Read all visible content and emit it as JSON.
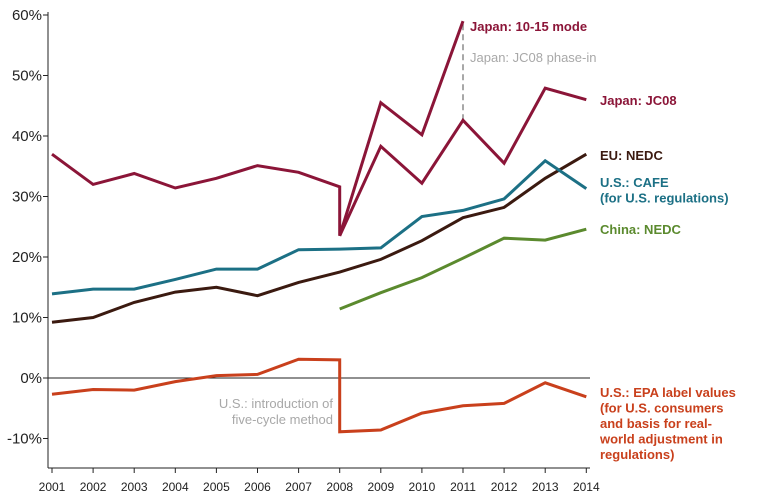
{
  "chart_data": {
    "type": "line",
    "title": "",
    "xlabel": "",
    "ylabel": "",
    "ylim": [
      -15,
      60
    ],
    "yticks": [
      -10,
      0,
      10,
      20,
      30,
      40,
      50,
      60
    ],
    "ytick_labels": [
      "-10%",
      "0%",
      "10%",
      "20%",
      "30%",
      "40%",
      "50%",
      "60%"
    ],
    "x_categories": [
      "2001",
      "2002",
      "2003",
      "2004",
      "2005",
      "2006",
      "2007",
      "2008",
      "2009",
      "2010",
      "2011",
      "2012",
      "2013",
      "2014"
    ],
    "grid": false,
    "series": [
      {
        "name": "Japan: 10-15 mode",
        "label_lines": [
          "Japan: 10-15 mode"
        ],
        "color": "#8b1538",
        "x": [
          2001,
          2002,
          2003,
          2004,
          2005,
          2006,
          2007,
          2008,
          2008,
          2009,
          2010,
          2011
        ],
        "y": [
          37,
          32,
          33.8,
          31.4,
          33,
          35.1,
          34,
          31.6,
          23.5,
          45.5,
          40.2,
          59
        ]
      },
      {
        "name": "Japan: JC08",
        "label_lines": [
          "Japan: JC08"
        ],
        "color": "#8b1538",
        "x": [
          2008,
          2009,
          2010,
          2011,
          2012,
          2013,
          2014
        ],
        "y": [
          23.5,
          38.3,
          32.2,
          42.6,
          35.5,
          47.9,
          46
        ]
      },
      {
        "name": "EU: NEDC",
        "label_lines": [
          "EU: NEDC"
        ],
        "color": "#3b1a10",
        "x": [
          2001,
          2002,
          2003,
          2004,
          2005,
          2006,
          2007,
          2008,
          2009,
          2010,
          2011,
          2012,
          2013,
          2014
        ],
        "y": [
          9.2,
          10,
          12.5,
          14.2,
          15,
          13.6,
          15.8,
          17.5,
          19.6,
          22.7,
          26.5,
          28.2,
          33,
          37
        ]
      },
      {
        "name": "U.S.: CAFE (for U.S. regulations)",
        "label_lines": [
          "U.S.: CAFE",
          "(for U.S. regulations)"
        ],
        "color": "#1c7085",
        "x": [
          2001,
          2002,
          2003,
          2004,
          2005,
          2006,
          2007,
          2008,
          2009,
          2010,
          2011,
          2012,
          2013,
          2014
        ],
        "y": [
          13.9,
          14.7,
          14.7,
          16.3,
          18,
          18,
          21.2,
          21.3,
          21.5,
          26.7,
          27.7,
          29.6,
          35.9,
          31.3
        ]
      },
      {
        "name": "China: NEDC",
        "label_lines": [
          "China: NEDC"
        ],
        "color": "#5b8a2e",
        "x": [
          2008,
          2009,
          2010,
          2011,
          2012,
          2013,
          2014
        ],
        "y": [
          11.4,
          14.1,
          16.6,
          19.8,
          23.1,
          22.8,
          24.6
        ]
      },
      {
        "name": "U.S.: EPA label values (for U.S. consumers and basis for real-world adjustment in regulations)",
        "label_lines": [
          "U.S.: EPA label values",
          "(for U.S. consumers",
          "and basis for real-",
          "world adjustment in",
          "regulations)"
        ],
        "color": "#c9401c",
        "x": [
          2001,
          2002,
          2003,
          2004,
          2005,
          2006,
          2007,
          2008,
          2008,
          2009,
          2010,
          2011,
          2012,
          2013,
          2014
        ],
        "y": [
          -2.7,
          -1.9,
          -2,
          -0.6,
          0.4,
          0.6,
          3.1,
          3,
          -8.9,
          -8.6,
          -5.8,
          -4.6,
          -4.2,
          -0.8,
          -3.1
        ]
      }
    ],
    "annotations": [
      {
        "label_lines": [
          "Japan: JC08 phase-in"
        ],
        "x": 2011,
        "y_from": 42.6,
        "y_to": 59
      },
      {
        "label_lines": [
          "U.S.: introduction of",
          "five-cycle method"
        ],
        "x": 2008,
        "y_from": 3,
        "y_to": -8.9
      },
      {
        "label_lines": [],
        "x": 2008,
        "y_from": 31.6,
        "y_to": 23.5
      }
    ]
  }
}
